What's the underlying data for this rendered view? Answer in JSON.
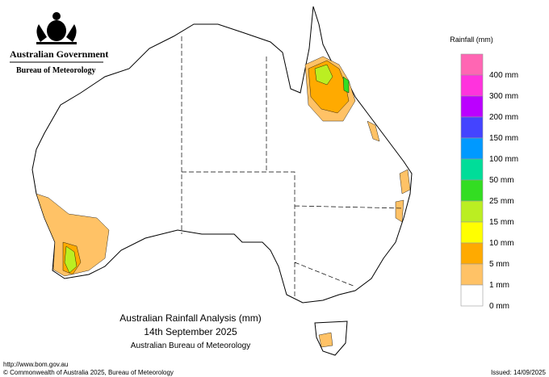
{
  "header": {
    "government": "Australian Government",
    "bureau": "Bureau of Meteorology"
  },
  "legend": {
    "title": "Rainfall (mm)",
    "items": [
      {
        "label": "400 mm",
        "color": "#ff66b3"
      },
      {
        "label": "300 mm",
        "color": "#ff33dd"
      },
      {
        "label": "200 mm",
        "color": "#bb00ff"
      },
      {
        "label": "150 mm",
        "color": "#4444ff"
      },
      {
        "label": "100 mm",
        "color": "#0099ff"
      },
      {
        "label": "50 mm",
        "color": "#00dd99"
      },
      {
        "label": "25 mm",
        "color": "#33dd22"
      },
      {
        "label": "15 mm",
        "color": "#bbee22"
      },
      {
        "label": "10 mm",
        "color": "#ffff00"
      },
      {
        "label": "5 mm",
        "color": "#ffaa00"
      },
      {
        "label": "1 mm",
        "color": "#ffc266"
      },
      {
        "label": "0 mm",
        "color": "#ffffff"
      }
    ]
  },
  "map_title": {
    "line1": "Australian Rainfall Analysis (mm)",
    "line2": "14th September 2025",
    "line3": "Australian Bureau of Meteorology"
  },
  "footer": {
    "url": "http://www.bom.gov.au",
    "copyright": "© Commonwealth of Australia 2025, Bureau of Meteorology",
    "issued": "Issued: 14/09/2025"
  }
}
